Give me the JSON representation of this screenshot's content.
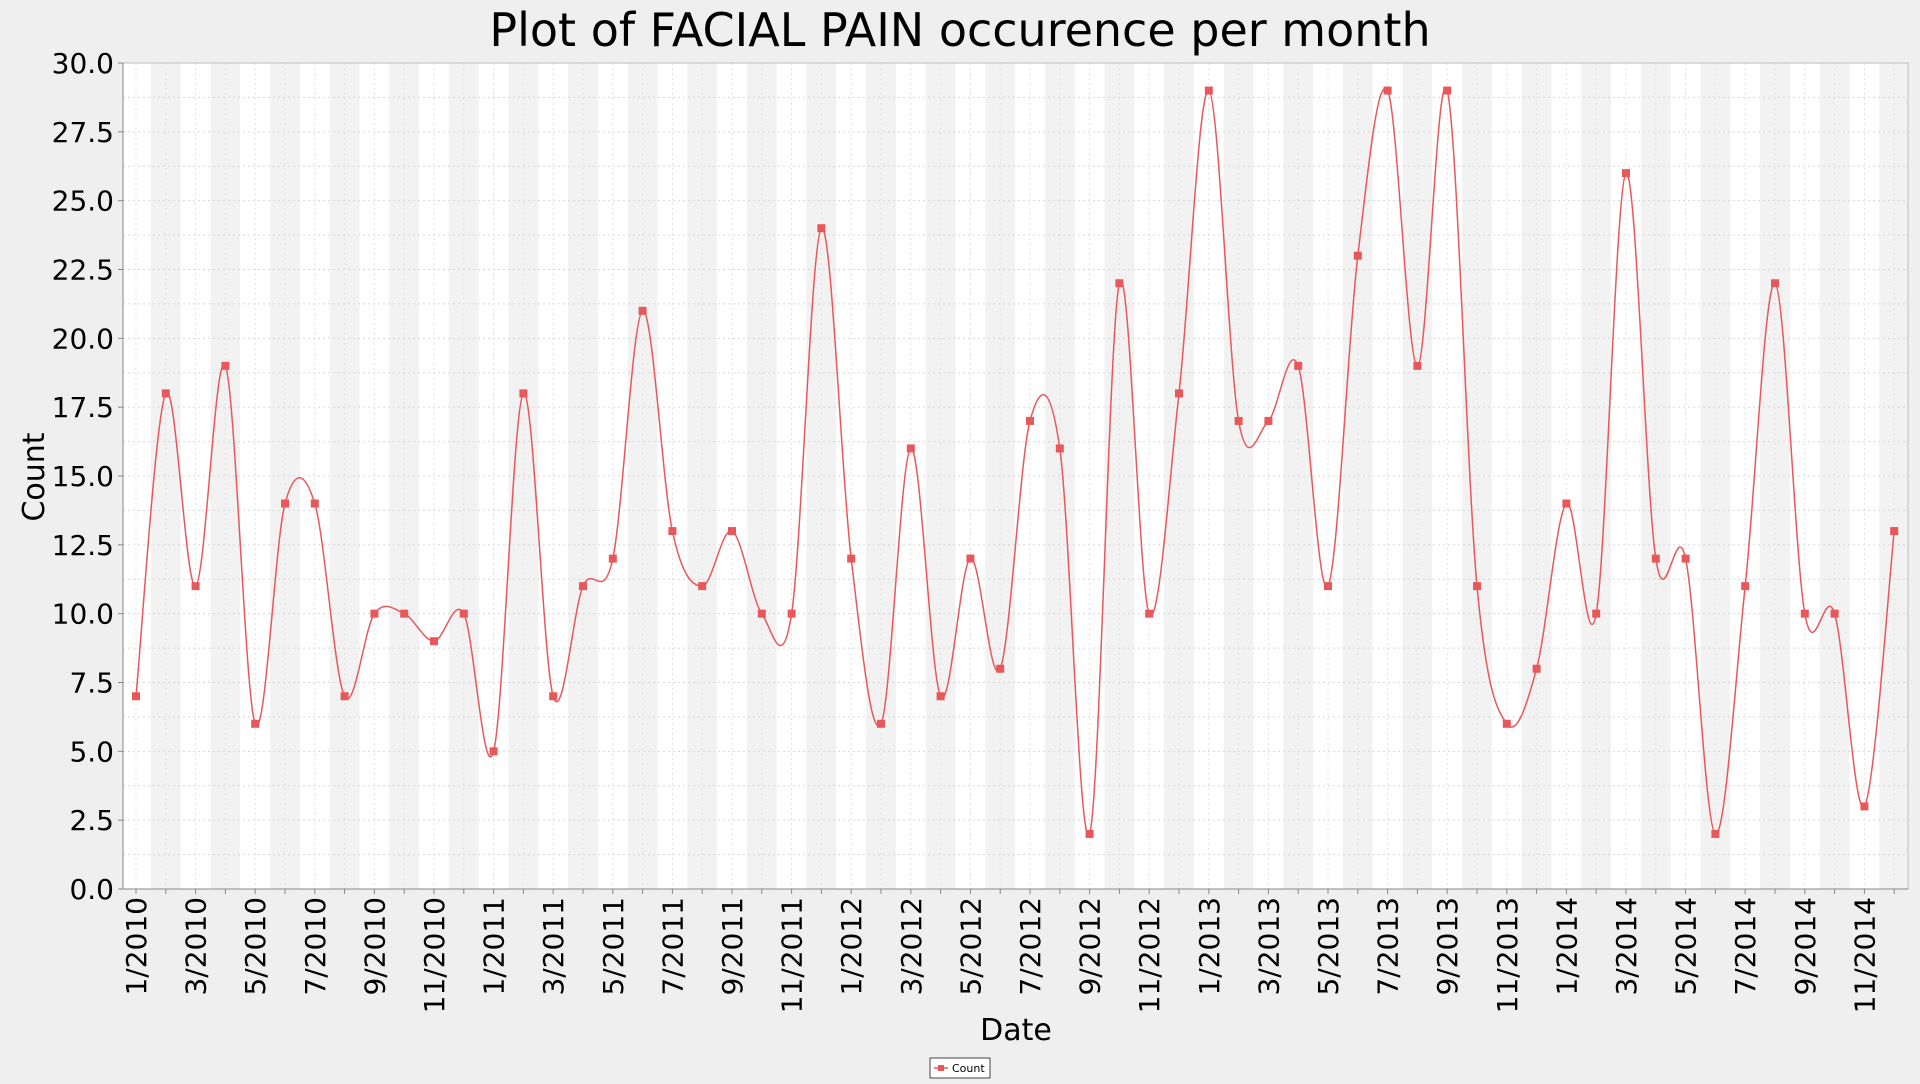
{
  "chart_data": {
    "type": "line",
    "title": "Plot of FACIAL PAIN occurence per month",
    "xlabel": "Date",
    "ylabel": "Count",
    "ylim": [
      0,
      30
    ],
    "yticks": [
      "0.0",
      "2.5",
      "5.0",
      "7.5",
      "10.0",
      "12.5",
      "15.0",
      "17.5",
      "20.0",
      "22.5",
      "25.0",
      "27.5",
      "30.0"
    ],
    "x_tick_labels": [
      "1/2010",
      "3/2010",
      "5/2010",
      "7/2010",
      "9/2010",
      "11/2010",
      "1/2011",
      "3/2011",
      "5/2011",
      "7/2011",
      "9/2011",
      "11/2011",
      "1/2012",
      "3/2012",
      "5/2012",
      "7/2012",
      "9/2012",
      "11/2012",
      "1/2013",
      "3/2013",
      "5/2013",
      "7/2013",
      "9/2013",
      "11/2013",
      "1/2014",
      "3/2014",
      "5/2014",
      "7/2014",
      "9/2014",
      "11/2014"
    ],
    "grid": true,
    "legend_position": "bottom-center",
    "line_color": "#e8585a",
    "series": [
      {
        "name": "Count",
        "x": [
          "1/2010",
          "2/2010",
          "3/2010",
          "4/2010",
          "5/2010",
          "6/2010",
          "7/2010",
          "8/2010",
          "9/2010",
          "10/2010",
          "11/2010",
          "12/2010",
          "1/2011",
          "2/2011",
          "3/2011",
          "4/2011",
          "5/2011",
          "6/2011",
          "7/2011",
          "8/2011",
          "9/2011",
          "10/2011",
          "11/2011",
          "12/2011",
          "1/2012",
          "2/2012",
          "3/2012",
          "4/2012",
          "5/2012",
          "6/2012",
          "7/2012",
          "8/2012",
          "9/2012",
          "10/2012",
          "11/2012",
          "12/2012",
          "1/2013",
          "2/2013",
          "3/2013",
          "4/2013",
          "5/2013",
          "6/2013",
          "7/2013",
          "8/2013",
          "9/2013",
          "10/2013",
          "11/2013",
          "12/2013",
          "1/2014",
          "2/2014",
          "3/2014",
          "4/2014",
          "5/2014",
          "6/2014",
          "7/2014",
          "8/2014",
          "9/2014",
          "10/2014",
          "11/2014",
          "12/2014"
        ],
        "values": [
          7,
          18,
          11,
          19,
          6,
          14,
          14,
          7,
          10,
          10,
          9,
          10,
          5,
          18,
          7,
          11,
          12,
          21,
          13,
          11,
          13,
          10,
          10,
          24,
          12,
          6,
          16,
          7,
          12,
          8,
          17,
          16,
          2,
          22,
          10,
          18,
          29,
          17,
          17,
          19,
          11,
          23,
          29,
          19,
          29,
          11,
          6,
          8,
          14,
          10,
          26,
          12,
          12,
          2,
          11,
          22,
          10,
          10,
          3,
          13
        ]
      }
    ]
  }
}
